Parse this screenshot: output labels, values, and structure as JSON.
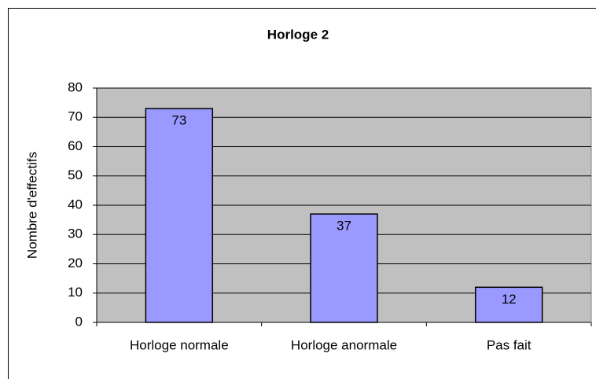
{
  "chart_data": {
    "type": "bar",
    "title": "Horloge 2",
    "y_label": "Nombre d'effectifs",
    "categories": [
      "Horloge normale",
      "Horloge anormale",
      "Pas fait"
    ],
    "values": [
      73,
      37,
      12
    ],
    "color": "#9999ff",
    "plot_background": "#c0c0c0",
    "ylim": [
      0,
      80
    ],
    "yticks": [
      0,
      10,
      20,
      30,
      40,
      50,
      60,
      70,
      80
    ],
    "grid": true
  }
}
